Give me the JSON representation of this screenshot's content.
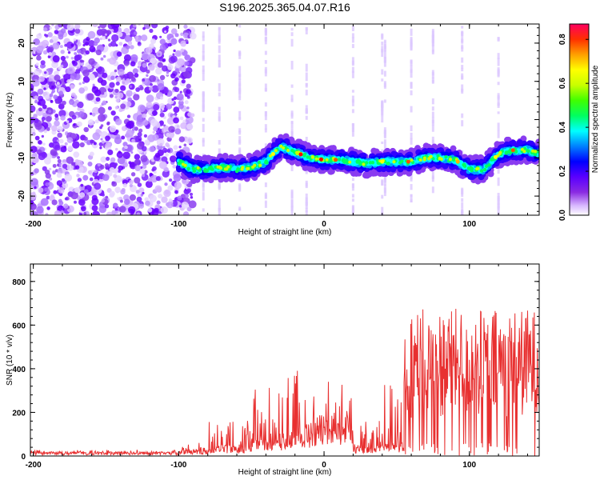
{
  "chart_data": [
    {
      "type": "heatmap",
      "title": "S196.2025.365.04.07.R16",
      "xlabel": "Height of straight line (km)",
      "ylabel": "Frequency (Hz)",
      "xlim": [
        -202,
        148
      ],
      "ylim": [
        -25,
        25
      ],
      "x_ticks": [
        -200,
        -100,
        0,
        100
      ],
      "y_ticks": [
        -20,
        -10,
        0,
        10,
        20
      ],
      "colorbar": {
        "label": "Normalized spectral amplitude",
        "range": [
          0,
          0.87
        ],
        "ticks": [
          0.0,
          0.2,
          0.4,
          0.6,
          0.8
        ],
        "colors": [
          "#ffffff",
          "#d8b8ff",
          "#8a2be2",
          "#5a00ff",
          "#0000ff",
          "#00a0ff",
          "#00ffff",
          "#00ff60",
          "#40ff00",
          "#c8ff00",
          "#ffff00",
          "#ffb000",
          "#ff5000",
          "#ff0000",
          "#ff0050"
        ]
      },
      "ridge": {
        "x": [
          -100,
          -90,
          -80,
          -70,
          -60,
          -50,
          -40,
          -30,
          -20,
          -10,
          0,
          10,
          20,
          30,
          40,
          50,
          60,
          70,
          80,
          90,
          100,
          110,
          120,
          130,
          140,
          148
        ],
        "y": [
          -11,
          -13,
          -13,
          -12.5,
          -13,
          -12.5,
          -11,
          -7,
          -8.5,
          -10,
          -10.5,
          -10.5,
          -11,
          -11.5,
          -11,
          -11,
          -11,
          -10,
          -10,
          -10.5,
          -13,
          -13,
          -9,
          -8,
          -8,
          -9
        ]
      },
      "noise_region_x": [
        -202,
        -90
      ]
    },
    {
      "type": "line",
      "xlabel": "Height of straight line (km)",
      "ylabel": "SNR (10 * v/v)",
      "xlim": [
        -202,
        148
      ],
      "ylim": [
        0,
        880
      ],
      "x_ticks": [
        -200,
        -100,
        0,
        100
      ],
      "y_ticks": [
        0,
        200,
        400,
        600,
        800
      ],
      "color": "#e83030",
      "series": [
        {
          "name": "SNR",
          "segments": [
            {
              "x": [
                -202,
                -100
              ],
              "base": 15,
              "amp": 10
            },
            {
              "x": [
                -100,
                -80
              ],
              "base": 25,
              "amp": 30
            },
            {
              "x": [
                -80,
                -50
              ],
              "base": 40,
              "amp": 120
            },
            {
              "x": [
                -50,
                -25
              ],
              "base": 80,
              "amp": 240
            },
            {
              "x": [
                -25,
                -5
              ],
              "base": 120,
              "amp": 300
            },
            {
              "x": [
                -5,
                20
              ],
              "base": 150,
              "amp": 180
            },
            {
              "x": [
                20,
                38
              ],
              "base": 40,
              "amp": 120
            },
            {
              "x": [
                38,
                55
              ],
              "base": 50,
              "amp": 300
            },
            {
              "x": [
                55,
                148
              ],
              "base": 350,
              "amp": 500
            }
          ]
        }
      ]
    }
  ]
}
